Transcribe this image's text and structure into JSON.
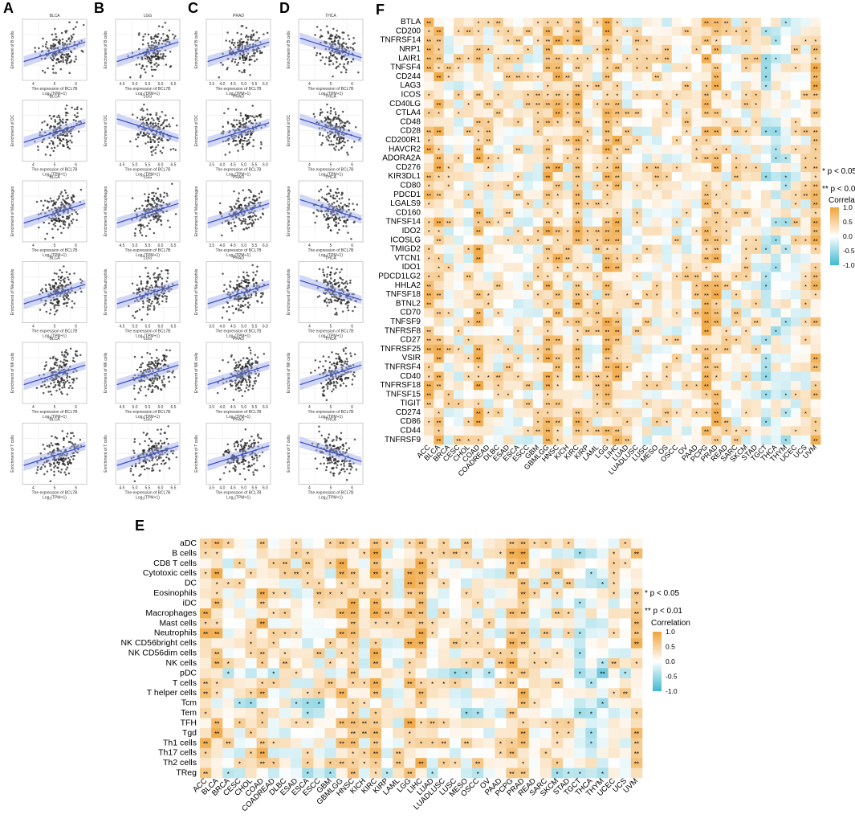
{
  "panel_letters": [
    "A",
    "B",
    "C",
    "D",
    "E",
    "F"
  ],
  "colors": {
    "positive": "#F0A43C",
    "negative": "#3FB8D0",
    "neutral": "#FFFFFF",
    "regression_line": "#3B4FC8",
    "points": "#222222",
    "stat_text": "#3DB8CE"
  },
  "scatter_columns": [
    {
      "cancer": "BLCA",
      "x_ticks": [
        "4",
        "5",
        "6"
      ]
    },
    {
      "cancer": "LGG",
      "x_ticks": [
        "4.5",
        "5.0",
        "5.5",
        "6.0",
        "6.5"
      ]
    },
    {
      "cancer": "PRAD",
      "x_ticks": [
        "3.5",
        "4.0",
        "4.5",
        "5.0",
        "5.5",
        "6.0"
      ]
    },
    {
      "cancer": "THCA",
      "x_ticks": [
        "4",
        "5",
        "6"
      ]
    }
  ],
  "scatter_rows": [
    "Enrichment of B cells",
    "Enrichment of DC",
    "Enrichment of Macrophages",
    "Enrichment of Neutrophils",
    "Enrichment of NK cells",
    "Enrichment of T cells"
  ],
  "scatter_xlabel": [
    "The expression of BCL7B",
    "Log",
    "2",
    "(TPM+1)"
  ],
  "legend_sig": [
    "* p < 0.05",
    "** p < 0.01"
  ],
  "legend_title": "Correlation",
  "legend_ticks": [
    "1.0",
    "0.5",
    "0.0",
    "-0.5",
    "-1.0"
  ],
  "cancer_types": [
    "ACC",
    "BLCA",
    "BRCA",
    "CESC",
    "CHOL",
    "COAD",
    "COADREAD",
    "DLBC",
    "ESAD",
    "ESCA",
    "ESCC",
    "GBM",
    "GBMLGG",
    "HNSC",
    "KICH",
    "KIRC",
    "KIRP",
    "LAML",
    "LGG",
    "LIHC",
    "LUAD",
    "LUADLUSC",
    "LUSC",
    "MESO",
    "OSCC",
    "OV",
    "PAAD",
    "PCPG",
    "PRAD",
    "READ",
    "SARC",
    "SKCM",
    "STAD",
    "TGCT",
    "THCA",
    "THYM",
    "UCEC",
    "UCS",
    "UVM"
  ],
  "chart_data": [
    {
      "type": "scatter",
      "panels": "A-D",
      "description": "BCL7B expression vs immune cell enrichment in BLCA, LGG, PRAD, THCA",
      "columns": [
        "BLCA",
        "LGG",
        "PRAD",
        "THCA"
      ],
      "rows": [
        "B cells",
        "DC",
        "Macrophages",
        "Neutrophils",
        "NK cells",
        "T cells"
      ],
      "xlabel": "The expression of BCL7B Log2(TPM+1)",
      "trend": {
        "BLCA": [
          "+",
          "+",
          "+",
          "+",
          "+",
          "+"
        ],
        "LGG": [
          "+",
          "-",
          "+",
          "+",
          "+",
          "+"
        ],
        "PRAD": [
          "+",
          "+",
          "+",
          "+",
          "+",
          "+"
        ],
        "THCA": [
          "-",
          "-",
          "-",
          "-",
          "+",
          "-"
        ]
      }
    },
    {
      "type": "heatmap",
      "panel": "E",
      "legend_title": "Correlation",
      "legend_ticks": [
        1.0,
        0.5,
        0.0,
        -0.5,
        -1.0
      ],
      "significance": [
        "* p < 0.05",
        "** p < 0.01"
      ],
      "rows": [
        "aDC",
        "B cells",
        "CD8 T cells",
        "Cytotoxic cells",
        "DC",
        "Eosinophils",
        "iDC",
        "Macrophages",
        "Mast cells",
        "Neutrophils",
        "NK CD56bright cells",
        "NK CD56dim cells",
        "NK cells",
        "pDC",
        "T cells",
        "T helper cells",
        "Tcm",
        "Tem",
        "TFH",
        "Tgd",
        "Th1 cells",
        "Th17 cells",
        "Th2 cells",
        "TReg"
      ],
      "columns": [
        "ACC",
        "BLCA",
        "BRCA",
        "CESC",
        "CHOL",
        "COAD",
        "COADREAD",
        "DLBC",
        "ESAD",
        "ESCA",
        "ESCC",
        "GBM",
        "GBMLGG",
        "HNSC",
        "KICH",
        "KIRC",
        "KIRP",
        "LAML",
        "LGG",
        "LIHC",
        "LUAD",
        "LUADLUSC",
        "LUSC",
        "MESO",
        "OSCC",
        "OV",
        "PAAD",
        "PCPG",
        "PRAD",
        "READ",
        "SARC",
        "SKCM",
        "STAD",
        "TGCT",
        "THCA",
        "THYM",
        "UCEC",
        "UCS",
        "UVM"
      ]
    },
    {
      "type": "heatmap",
      "panel": "F",
      "legend_title": "Correlation",
      "legend_ticks": [
        1.0,
        0.5,
        0.0,
        -0.5,
        -1.0
      ],
      "significance": [
        "* p < 0.05",
        "** p < 0.01"
      ],
      "rows": [
        "BTLA",
        "CD200",
        "TNFRSF14",
        "NRP1",
        "LAIR1",
        "TNFSF4",
        "CD244",
        "LAG3",
        "ICOS",
        "CD40LG",
        "CTLA4",
        "CD48",
        "CD28",
        "CD200R1",
        "HAVCR2",
        "ADORA2A",
        "CD276",
        "KIR3DL1",
        "CD80",
        "PDCD1",
        "LGALS9",
        "CD160",
        "TNFSF14",
        "IDO2",
        "ICOSLG",
        "TMIGD2",
        "VTCN1",
        "IDO1",
        "PDCD1LG2",
        "HHLA2",
        "TNFSF18",
        "BTNL2",
        "CD70",
        "TNFSF9",
        "TNFRSF8",
        "CD27",
        "TNFRSF25",
        "VSIR",
        "TNFRSF4",
        "CD40",
        "TNFRSF18",
        "TNFSF15",
        "TIGIT",
        "CD274",
        "CD86",
        "CD44",
        "TNFRSF9"
      ],
      "columns": [
        "ACC",
        "BLCA",
        "BRCA",
        "CESC",
        "CHOL",
        "COAD",
        "COADREAD",
        "DLBC",
        "ESAD",
        "ESCA",
        "ESCC",
        "GBM",
        "GBMLGG",
        "HNSC",
        "KICH",
        "KIRC",
        "KIRP",
        "LAML",
        "LGG",
        "LIHC",
        "LUAD",
        "LUADLUSC",
        "LUSC",
        "MESO",
        "OS",
        "OSCC",
        "OV",
        "PAAD",
        "PCPG",
        "PRAD",
        "READ",
        "SARC",
        "SKCM",
        "STAD",
        "TGCT",
        "THCA",
        "THYM",
        "UCEC",
        "UCS",
        "UVM"
      ]
    }
  ]
}
